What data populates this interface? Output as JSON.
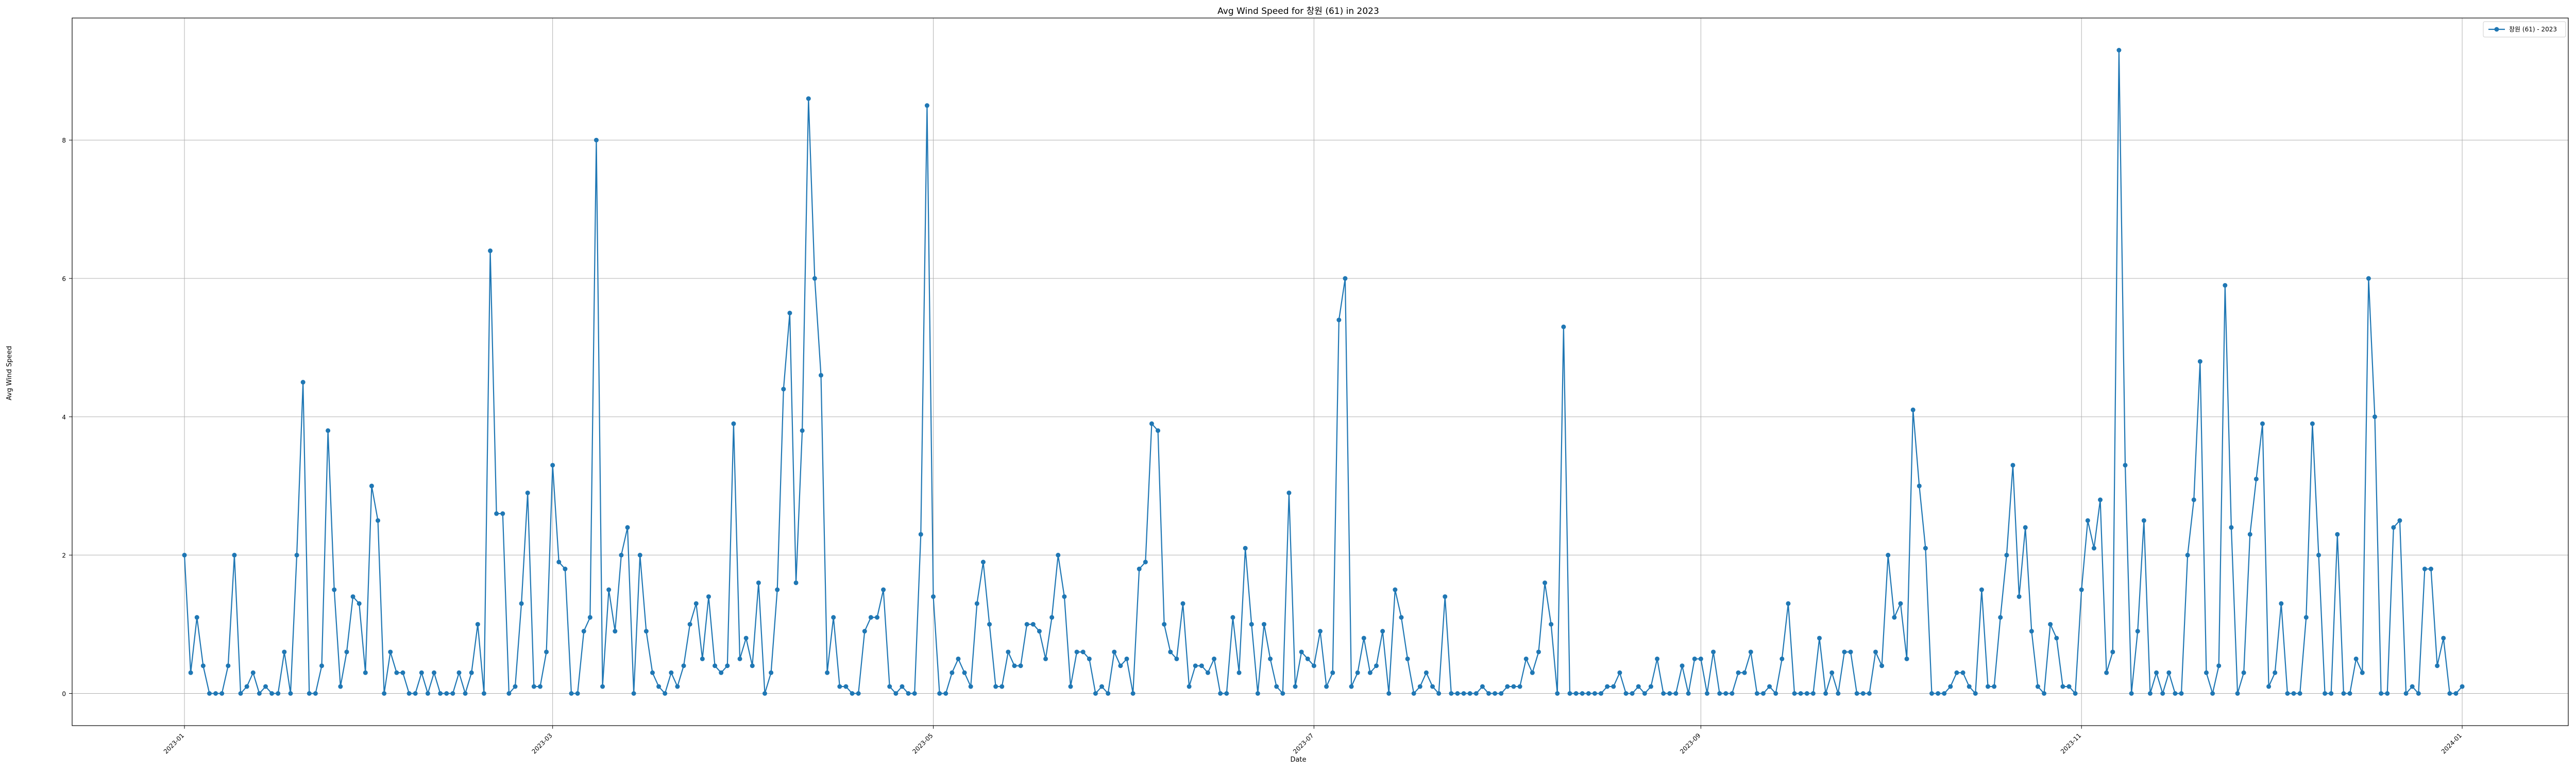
{
  "chart_data": {
    "type": "line",
    "title": "Avg Wind Speed for 창원 (61) in 2023",
    "xlabel": "Date",
    "ylabel": "Avg Wind Speed",
    "x_start": "2023-01-01",
    "x_end": "2023-12-31",
    "xlim": [
      "2022-12-14",
      "2024-01-18"
    ],
    "ylim": [
      -0.465,
      9.765
    ],
    "grid": true,
    "legend_placement": "top-right",
    "x_tick_labels": [
      "2023-01",
      "2023-03",
      "2023-05",
      "2023-07",
      "2023-09",
      "2023-11",
      "2024-01"
    ],
    "x_tick_dates": [
      "2023-01-01",
      "2023-03-01",
      "2023-05-01",
      "2023-07-01",
      "2023-09-01",
      "2023-11-01",
      "2024-01-01"
    ],
    "y_ticks": [
      0,
      2,
      4,
      6,
      8
    ],
    "colors": {
      "series": "#1f77b4",
      "grid": "#b0b0b0"
    },
    "series": [
      {
        "name": "창원 (61) - 2023",
        "values": [
          2.0,
          0.3,
          1.1,
          0.4,
          0.0,
          0.0,
          0.0,
          0.4,
          2.0,
          0.0,
          0.1,
          0.3,
          0.0,
          0.1,
          0.0,
          0.0,
          0.6,
          0.0,
          2.0,
          4.5,
          0.0,
          0.0,
          0.4,
          3.8,
          1.5,
          0.1,
          0.6,
          1.4,
          1.3,
          0.3,
          3.0,
          2.5,
          0.0,
          0.6,
          0.3,
          0.3,
          0.0,
          0.0,
          0.3,
          0.0,
          0.3,
          0.0,
          0.0,
          0.0,
          0.3,
          0.0,
          0.3,
          1.0,
          0.0,
          6.4,
          2.6,
          2.6,
          0.0,
          0.1,
          1.3,
          2.9,
          0.1,
          0.1,
          0.6,
          3.3,
          1.9,
          1.8,
          0.0,
          0.0,
          0.9,
          1.1,
          8.0,
          0.1,
          1.5,
          0.9,
          2.0,
          2.4,
          0.0,
          2.0,
          0.9,
          0.3,
          0.1,
          0.0,
          0.3,
          0.1,
          0.4,
          1.0,
          1.3,
          0.5,
          1.4,
          0.4,
          0.3,
          0.4,
          3.9,
          0.5,
          0.8,
          0.4,
          1.6,
          0.0,
          0.3,
          1.5,
          4.4,
          5.5,
          1.6,
          3.8,
          8.6,
          6.0,
          4.6,
          0.3,
          1.1,
          0.1,
          0.1,
          0.0,
          0.0,
          0.9,
          1.1,
          1.1,
          1.5,
          0.1,
          0.0,
          0.1,
          0.0,
          0.0,
          2.3,
          8.5,
          1.4,
          0.0,
          0.0,
          0.3,
          0.5,
          0.3,
          0.1,
          1.3,
          1.9,
          1.0,
          0.1,
          0.1,
          0.6,
          0.4,
          0.4,
          1.0,
          1.0,
          0.9,
          0.5,
          1.1,
          2.0,
          1.4,
          0.1,
          0.6,
          0.6,
          0.5,
          0.0,
          0.1,
          0.0,
          0.6,
          0.4,
          0.5,
          0.0,
          1.8,
          1.9,
          3.9,
          3.8,
          1.0,
          0.6,
          0.5,
          1.3,
          0.1,
          0.4,
          0.4,
          0.3,
          0.5,
          0.0,
          0.0,
          1.1,
          0.3,
          2.1,
          1.0,
          0.0,
          1.0,
          0.5,
          0.1,
          0.0,
          2.9,
          0.1,
          0.6,
          0.5,
          0.4,
          0.9,
          0.1,
          0.3,
          5.4,
          6.0,
          0.1,
          0.3,
          0.8,
          0.3,
          0.4,
          0.9,
          0.0,
          1.5,
          1.1,
          0.5,
          0.0,
          0.1,
          0.3,
          0.1,
          0.0,
          1.4,
          0.0,
          0.0,
          0.0,
          0.0,
          0.0,
          0.1,
          0.0,
          0.0,
          0.0,
          0.1,
          0.1,
          0.1,
          0.5,
          0.3,
          0.6,
          1.6,
          1.0,
          0.0,
          5.3,
          0.0,
          0.0,
          0.0,
          0.0,
          0.0,
          0.0,
          0.1,
          0.1,
          0.3,
          0.0,
          0.0,
          0.1,
          0.0,
          0.1,
          0.5,
          0.0,
          0.0,
          0.0,
          0.4,
          0.0,
          0.5,
          0.5,
          0.0,
          0.6,
          0.0,
          0.0,
          0.0,
          0.3,
          0.3,
          0.6,
          0.0,
          0.0,
          0.1,
          0.0,
          0.5,
          1.3,
          0.0,
          0.0,
          0.0,
          0.0,
          0.8,
          0.0,
          0.3,
          0.0,
          0.6,
          0.6,
          0.0,
          0.0,
          0.0,
          0.6,
          0.4,
          2.0,
          1.1,
          1.3,
          0.5,
          4.1,
          3.0,
          2.1,
          0.0,
          0.0,
          0.0,
          0.1,
          0.3,
          0.3,
          0.1,
          0.0,
          1.5,
          0.1,
          0.1,
          1.1,
          2.0,
          3.3,
          1.4,
          2.4,
          0.9,
          0.1,
          0.0,
          1.0,
          0.8,
          0.1,
          0.1,
          0.0,
          1.5,
          2.5,
          2.1,
          2.8,
          0.3,
          0.6,
          9.3,
          3.3,
          0.0,
          0.9,
          2.5,
          0.0,
          0.3,
          0.0,
          0.3,
          0.0,
          0.0,
          2.0,
          2.8,
          4.8,
          0.3,
          0.0,
          0.4,
          5.9,
          2.4,
          0.0,
          0.3,
          2.3,
          3.1,
          3.9,
          0.1,
          0.3,
          1.3,
          0.0,
          0.0,
          0.0,
          1.1,
          3.9,
          2.0,
          0.0,
          0.0,
          2.3,
          0.0,
          0.0,
          0.5,
          0.3,
          6.0,
          4.0,
          0.0,
          0.0,
          2.4,
          2.5,
          0.0,
          0.1,
          0.0,
          1.8,
          1.8,
          0.4,
          0.8,
          0.0,
          0.0,
          0.1
        ]
      }
    ]
  }
}
